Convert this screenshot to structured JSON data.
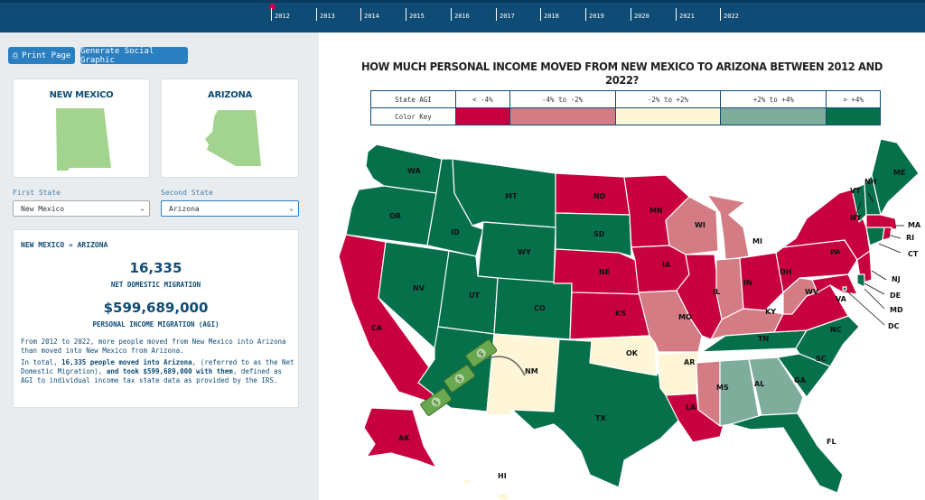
{
  "timeline": {
    "years": [
      "2012",
      "2013",
      "2014",
      "2015",
      "2016",
      "2017",
      "2018",
      "2019",
      "2020",
      "2021",
      "2022"
    ]
  },
  "buttons": {
    "print": "Print Page",
    "social": "Generate Social Graphic"
  },
  "states": {
    "first_name": "NEW MEXICO",
    "second_name": "ARIZONA"
  },
  "selects": {
    "first_label": "First State",
    "first_value": "New Mexico",
    "second_label": "Second State",
    "second_value": "Arizona"
  },
  "summary": {
    "heading": "NEW MEXICO » ARIZONA",
    "migration_number": "16,335",
    "migration_label": "NET DOMESTIC MIGRATION",
    "agi_number": "$599,689,000",
    "agi_label": "PERSONAL INCOME MIGRATION (AGI)",
    "para1": "From 2012 to 2022, more people moved from New Mexico into Arizona than moved into New Mexico from Arizona.",
    "para2_a": "In total, ",
    "para2_b": "16,335 people moved into Arizona",
    "para2_c": ", (referred to as the Net Domestic Migration), ",
    "para2_d": "and took $599,689,000 with them",
    "para2_e": ", defined as AGI to individual income tax state data as provided by the IRS."
  },
  "map": {
    "title": "HOW MUCH PERSONAL INCOME MOVED FROM NEW MEXICO TO ARIZONA BETWEEN 2012 AND 2022?",
    "key_row1_label": "State AGI",
    "key_row2_label": "Color Key",
    "buckets": [
      {
        "label": "< -4%",
        "color": "#c8003f"
      },
      {
        "label": "-4% to -2%",
        "color": "#d47c84"
      },
      {
        "label": "-2% to +2%",
        "color": "#fef6d6"
      },
      {
        "label": "+2% to +4%",
        "color": "#7fad9c"
      },
      {
        "label": "> +4%",
        "color": "#06704a"
      }
    ],
    "colors": {
      "dark_green": "#06704a",
      "light_green": "#7fad9c",
      "cream": "#fef6d6",
      "pink": "#d47c84",
      "crimson": "#c8003f",
      "state_green": "#a3d48f"
    },
    "state_labels": {
      "WA": "WA",
      "OR": "OR",
      "CA": "CA",
      "NV": "NV",
      "ID": "ID",
      "MT": "MT",
      "WY": "WY",
      "UT": "UT",
      "CO": "CO",
      "NM": "NM",
      "TX": "TX",
      "ND": "ND",
      "SD": "SD",
      "NE": "NE",
      "KS": "KS",
      "OK": "OK",
      "MN": "MN",
      "IA": "IA",
      "MO": "MO",
      "AR": "AR",
      "LA": "LA",
      "WI": "WI",
      "IL": "IL",
      "MI": "MI",
      "IN": "IN",
      "OH": "OH",
      "KY": "KY",
      "TN": "TN",
      "MS": "MS",
      "AL": "AL",
      "GA": "GA",
      "FL": "FL",
      "SC": "SC",
      "NC": "NC",
      "VA": "VA",
      "WV": "WV",
      "PA": "PA",
      "NY": "NY",
      "VT": "VT",
      "NH": "NH",
      "ME": "ME",
      "MA": "MA",
      "RI": "RI",
      "CT": "CT",
      "NJ": "NJ",
      "DE": "DE",
      "MD": "MD",
      "DC": "DC",
      "AK": "AK",
      "HI": "HI"
    },
    "icons": {
      "money": "money-bills-icon",
      "arrow": "migration-arc-icon"
    }
  }
}
